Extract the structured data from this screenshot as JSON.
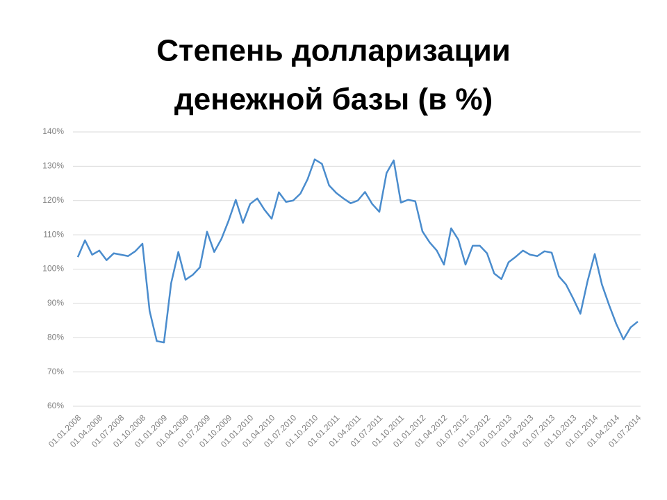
{
  "chart_data": {
    "type": "line",
    "title": [
      "Степень долларизации",
      "денежной базы (в %)"
    ],
    "categories": [
      "01.01.2008",
      null,
      null,
      "01.04.2008",
      null,
      null,
      "01.07.2008",
      null,
      null,
      "01.10.2008",
      null,
      null,
      "01.01.2009",
      null,
      null,
      "01.04.2009",
      null,
      null,
      "01.07.2009",
      null,
      null,
      "01.10.2009",
      null,
      null,
      "01.01.2010",
      null,
      null,
      "01.04.2010",
      null,
      null,
      "01.07.2010",
      null,
      null,
      "01.10.2010",
      null,
      null,
      "01.01.2011",
      null,
      null,
      "01.04.2011",
      null,
      null,
      "01.07.2011",
      null,
      null,
      "01.10.2011",
      null,
      null,
      "01.01.2012",
      null,
      null,
      "01.04.2012",
      null,
      null,
      "01.07.2012",
      null,
      null,
      "01.10.2012",
      null,
      null,
      "01.01.2013",
      null,
      null,
      "01.04.2013",
      null,
      null,
      "01.07.2013",
      null,
      null,
      "01.10.2013",
      null,
      null,
      "01.01.2014",
      null,
      null,
      "01.04.2014",
      null,
      null,
      "01.07.2014"
    ],
    "values": [
      103.5,
      108.4,
      104.2,
      105.4,
      102.6,
      104.6,
      104.2,
      103.8,
      105.2,
      107.4,
      87.8,
      79,
      78.6,
      95.9,
      105,
      96.9,
      98.3,
      100.5,
      110.9,
      105,
      108.8,
      114.1,
      120.2,
      113.5,
      119,
      120.6,
      117.3,
      114.7,
      122.4,
      119.6,
      120,
      122,
      126.2,
      132,
      130.7,
      124.4,
      122.2,
      120.6,
      119.2,
      120,
      122.5,
      119,
      116.7,
      128,
      131.7,
      119.4,
      120.2,
      119.8,
      111,
      107.8,
      105.4,
      101.3,
      111.9,
      108.6,
      101.3,
      106.8,
      106.8,
      104.6,
      98.7,
      97.1,
      102,
      103.6,
      105.4,
      104.2,
      103.8,
      105.2,
      104.8,
      97.9,
      95.5,
      91.4,
      87,
      96.5,
      104.4,
      95.5,
      89.5,
      84,
      79.5,
      83,
      84.7
    ],
    "color": "#4a8ccd",
    "ylim": [
      60,
      140
    ],
    "yticks": [
      {
        "value": 60,
        "label": "60%"
      },
      {
        "value": 70,
        "label": "70%"
      },
      {
        "value": 80,
        "label": "80%"
      },
      {
        "value": 90,
        "label": "90%"
      },
      {
        "value": 100,
        "label": "100%"
      },
      {
        "value": 110,
        "label": "110%"
      },
      {
        "value": 120,
        "label": "120%"
      },
      {
        "value": 130,
        "label": "130%"
      },
      {
        "value": 140,
        "label": "140%"
      }
    ],
    "grid": true
  }
}
